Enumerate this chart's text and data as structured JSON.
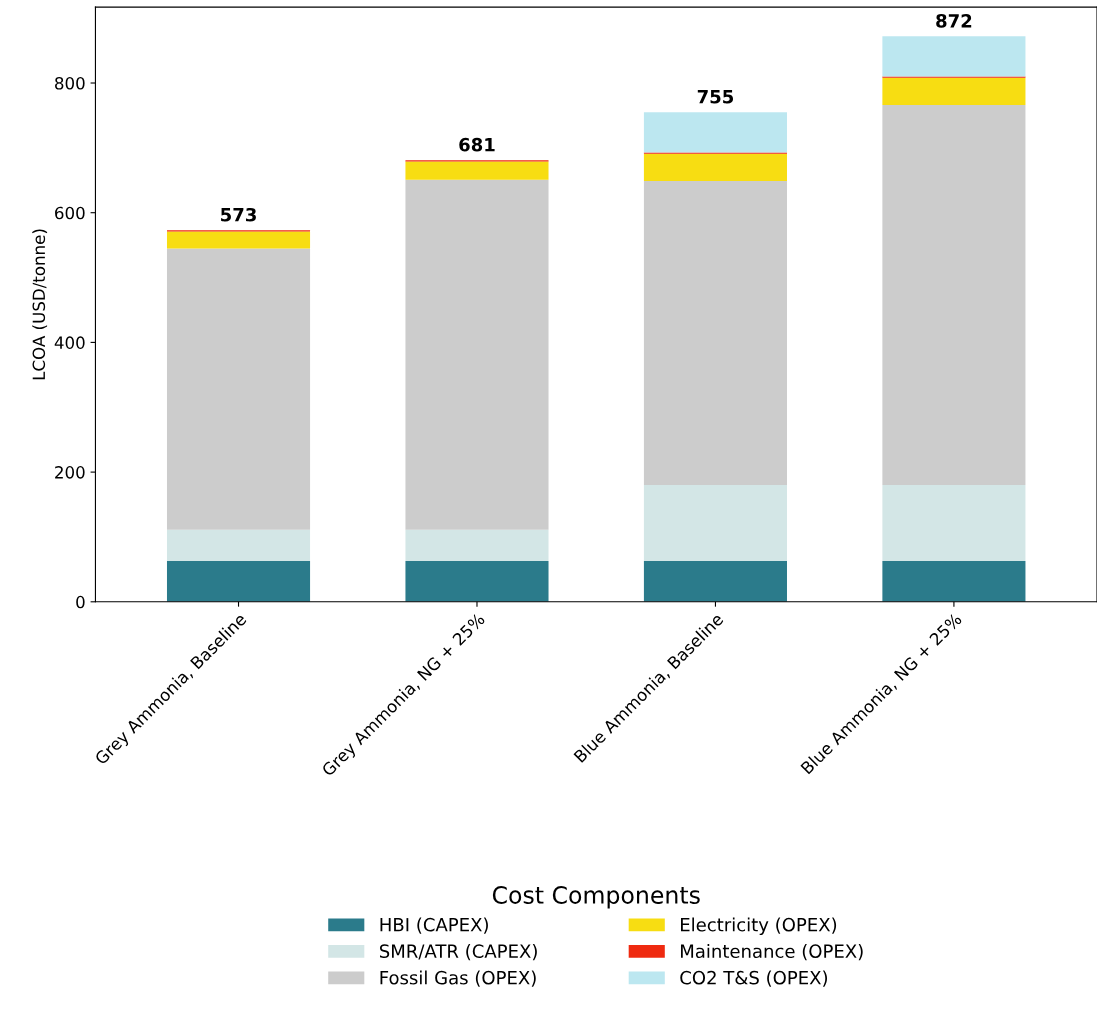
{
  "chart_data": {
    "type": "bar",
    "stacked": true,
    "ylabel": "LCOA (USD/tonne)",
    "legend_title": "Cost Components",
    "legend": "bottom",
    "categories": [
      "Grey Ammonia, Baseline",
      "Grey Ammonia, NG + 25%",
      "Blue Ammonia, Baseline",
      "Blue Ammonia, NG + 25%"
    ],
    "series": [
      {
        "name": "HBI (CAPEX)",
        "color": "#2b7b8b",
        "values": [
          63,
          63,
          63,
          63
        ]
      },
      {
        "name": "SMR/ATR (CAPEX)",
        "color": "#d3e6e6",
        "values": [
          48,
          48,
          117,
          117
        ]
      },
      {
        "name": "Fossil Gas (OPEX)",
        "color": "#cccccc",
        "values": [
          434,
          540,
          469,
          586
        ]
      },
      {
        "name": "Electricity (OPEX)",
        "color": "#f7dd12",
        "values": [
          26,
          28,
          42,
          42
        ]
      },
      {
        "name": "Maintenance (OPEX)",
        "color": "#ef2a10",
        "values": [
          2,
          2,
          2,
          2
        ]
      },
      {
        "name": "CO2 T&S (OPEX)",
        "color": "#bce7f0",
        "values": [
          0,
          0,
          62,
          62
        ]
      }
    ],
    "totals": [
      "573",
      "681",
      "755",
      "872"
    ],
    "ylim": [
      0,
      917
    ],
    "yticks": [
      0,
      200,
      400,
      600,
      800
    ],
    "grid": false
  }
}
